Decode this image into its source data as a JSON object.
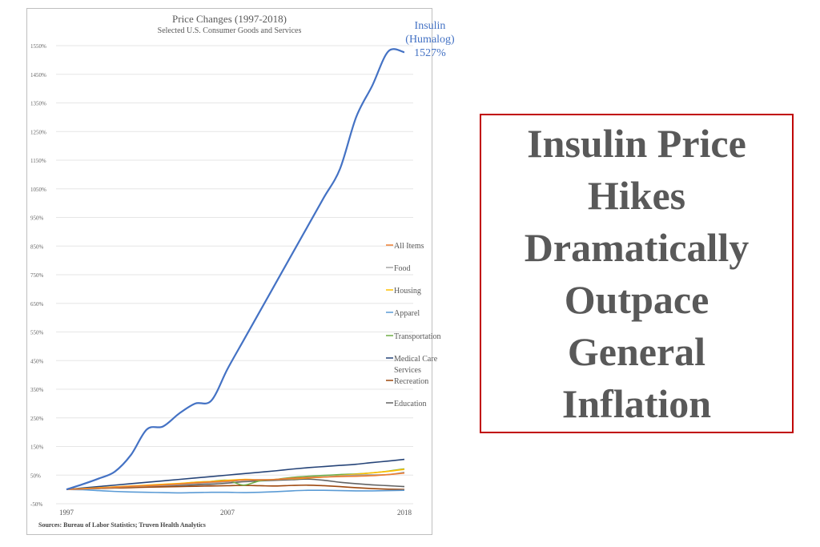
{
  "chart_data": {
    "type": "line",
    "title": "Price Changes (1997-2018)",
    "subtitle": "Selected U.S. Consumer Goods and Services",
    "source": "Sources: Bureau of Labor Statistics; Truven Health Analytics",
    "x": [
      1997,
      1998,
      1999,
      2000,
      2001,
      2002,
      2003,
      2004,
      2005,
      2006,
      2007,
      2008,
      2009,
      2010,
      2011,
      2012,
      2013,
      2014,
      2015,
      2016,
      2017,
      2018
    ],
    "xticks": [
      "1997",
      "2007",
      "2018"
    ],
    "yticks": [
      "1550%",
      "1450%",
      "1350%",
      "1250%",
      "1150%",
      "1050%",
      "950%",
      "850%",
      "750%",
      "650%",
      "550%",
      "450%",
      "350%",
      "250%",
      "150%",
      "50%",
      "-50%"
    ],
    "ylim": [
      -50,
      1550
    ],
    "grid": true,
    "legend_position": "right",
    "annotation": {
      "line1": "Insulin",
      "line2": "(Humalog)",
      "line3": "1527%"
    },
    "series": [
      {
        "name": "Insulin (Humalog)",
        "color": "#4472c4",
        "values": [
          0,
          18,
          38,
          62,
          120,
          210,
          220,
          265,
          300,
          310,
          420,
          520,
          620,
          720,
          820,
          920,
          1020,
          1120,
          1300,
          1410,
          1530,
          1527
        ],
        "legend": false
      },
      {
        "name": "All Items",
        "color": "#ed7d31",
        "values": [
          0,
          2,
          5,
          8,
          11,
          13,
          16,
          19,
          23,
          26,
          29,
          33,
          33,
          35,
          39,
          41,
          43,
          45,
          46,
          48,
          52,
          57
        ]
      },
      {
        "name": "Food",
        "color": "#a5a5a5",
        "values": [
          0,
          2,
          4,
          7,
          10,
          12,
          14,
          17,
          20,
          23,
          27,
          33,
          34,
          35,
          38,
          42,
          44,
          47,
          50,
          51,
          52,
          60
        ]
      },
      {
        "name": "Housing",
        "color": "#ffc000",
        "values": [
          0,
          3,
          6,
          9,
          12,
          15,
          18,
          21,
          25,
          28,
          32,
          35,
          34,
          35,
          37,
          40,
          43,
          48,
          53,
          58,
          63,
          70
        ]
      },
      {
        "name": "Apparel",
        "color": "#5b9bd5",
        "values": [
          0,
          -1,
          -4,
          -7,
          -9,
          -10,
          -11,
          -12,
          -11,
          -10,
          -10,
          -11,
          -10,
          -8,
          -5,
          -3,
          -3,
          -4,
          -5,
          -5,
          -4,
          -3
        ]
      },
      {
        "name": "Transportation",
        "color": "#70ad47",
        "values": [
          0,
          2,
          4,
          7,
          10,
          12,
          16,
          20,
          25,
          28,
          32,
          15,
          30,
          35,
          42,
          46,
          49,
          52,
          54,
          58,
          64,
          72
        ]
      },
      {
        "name": "Medical Care Services",
        "color": "#264478",
        "values": [
          0,
          5,
          10,
          15,
          20,
          25,
          30,
          35,
          40,
          45,
          50,
          55,
          60,
          65,
          71,
          76,
          80,
          84,
          88,
          94,
          99,
          105
        ]
      },
      {
        "name": "Recreation",
        "color": "#9e480e",
        "values": [
          0,
          2,
          3,
          5,
          6,
          8,
          9,
          10,
          11,
          12,
          13,
          14,
          13,
          12,
          14,
          15,
          13,
          10,
          6,
          3,
          1,
          0
        ]
      },
      {
        "name": "Education",
        "color": "#636363",
        "values": [
          0,
          2,
          4,
          6,
          8,
          10,
          12,
          14,
          16,
          18,
          22,
          27,
          30,
          32,
          34,
          36,
          32,
          25,
          20,
          16,
          13,
          10
        ]
      }
    ]
  },
  "headline": [
    "Insulin Price",
    "Hikes",
    "Dramatically",
    "Outpace",
    "General",
    "Inflation"
  ]
}
